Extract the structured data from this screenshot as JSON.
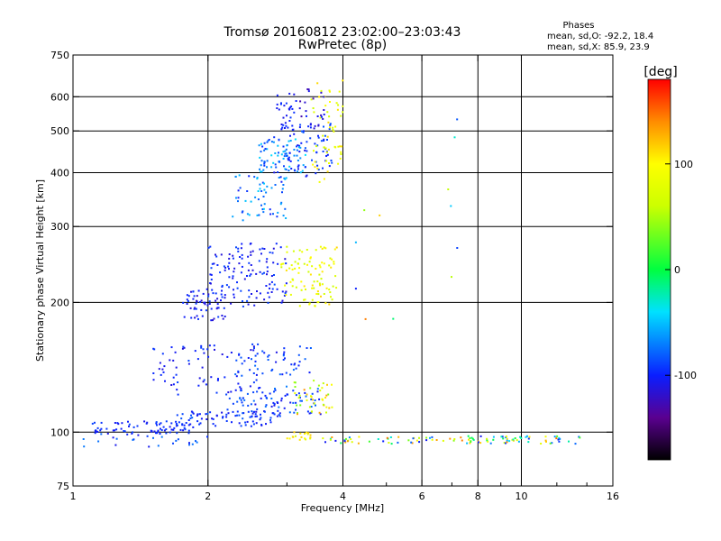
{
  "chart_data": {
    "type": "scatter",
    "title": "Tromsø 20160812 23:02:00–23:03:43",
    "subtitle": "RwPretec (8p)",
    "xlabel": "Frequency [MHz]",
    "ylabel": "Stationary phase Virtual Height [km]",
    "xscale": "log",
    "yscale": "log",
    "xlim": [
      1,
      16
    ],
    "ylim": [
      75,
      750
    ],
    "xticks": [
      {
        "value": 1,
        "label": "1"
      },
      {
        "value": 2,
        "label": "2"
      },
      {
        "value": 4,
        "label": "4"
      },
      {
        "value": 6,
        "label": "6"
      },
      {
        "value": 8,
        "label": "8"
      },
      {
        "value": 10,
        "label": "10"
      },
      {
        "value": 16,
        "label": "16"
      }
    ],
    "xminorticks": [
      3,
      5,
      7,
      9,
      12,
      14
    ],
    "xgrid": [
      2,
      4,
      6,
      8,
      10
    ],
    "yticks": [
      {
        "value": 75,
        "label": "75"
      },
      {
        "value": 100,
        "label": "100"
      },
      {
        "value": 200,
        "label": "200"
      },
      {
        "value": 300,
        "label": "300"
      },
      {
        "value": 400,
        "label": "400"
      },
      {
        "value": 500,
        "label": "500"
      },
      {
        "value": 600,
        "label": "600"
      },
      {
        "value": 750,
        "label": "750"
      }
    ],
    "ygrid": [
      100,
      200,
      300,
      400,
      500,
      600
    ],
    "grid": true,
    "phase_stats": {
      "heading": "Phases",
      "o_line": "mean, sd,O: -92.2, 18.4",
      "x_line": "mean, sd,X:  85.9, 23.9"
    },
    "colorbar": {
      "label": "[deg]",
      "range": [
        -180,
        180
      ],
      "ticks": [
        {
          "value": 100,
          "label": "100"
        },
        {
          "value": 0,
          "label": "0"
        },
        {
          "value": -100,
          "label": "-100"
        }
      ],
      "stops": [
        {
          "value": -180,
          "color": "#000000"
        },
        {
          "value": -140,
          "color": "#5a0090"
        },
        {
          "value": -100,
          "color": "#0a1eff"
        },
        {
          "value": -40,
          "color": "#00e1ff"
        },
        {
          "value": 0,
          "color": "#00ff40"
        },
        {
          "value": 60,
          "color": "#ccff00"
        },
        {
          "value": 100,
          "color": "#ffff00"
        },
        {
          "value": 140,
          "color": "#ff8c00"
        },
        {
          "value": 180,
          "color": "#ff0000"
        }
      ]
    },
    "series": [
      {
        "clusters": [
          {
            "f": [
              1.1,
              1.9
            ],
            "h": [
              99,
              106
            ],
            "phase": [
              -108,
              -88
            ],
            "n": 75
          },
          {
            "f": [
              1.7,
              2.9
            ],
            "h": [
              103,
              112
            ],
            "phase": [
              -110,
              -80
            ],
            "n": 80
          },
          {
            "f": [
              2.2,
              3.6
            ],
            "h": [
              110,
              128
            ],
            "phase": [
              -112,
              -70
            ],
            "n": 90
          },
          {
            "f": [
              3.1,
              3.8
            ],
            "h": [
              110,
              132
            ],
            "phase": [
              30,
              140
            ],
            "n": 40
          },
          {
            "f": [
              1.5,
              2.6
            ],
            "h": [
              122,
              160
            ],
            "phase": [
              -115,
              -85
            ],
            "n": 70
          },
          {
            "f": [
              2.3,
              3.4
            ],
            "h": [
              135,
              158
            ],
            "phase": [
              -110,
              -75
            ],
            "n": 50
          },
          {
            "f": [
              1.05,
              2.0
            ],
            "h": [
              92,
              99
            ],
            "phase": [
              -110,
              -70
            ],
            "n": 25
          },
          {
            "f": [
              3.0,
              3.4
            ],
            "h": [
              96,
              100
            ],
            "phase": [
              70,
              120
            ],
            "n": 18
          },
          {
            "f": [
              3.6,
              13.5
            ],
            "h": [
              94,
              98
            ],
            "phase": [
              -110,
              150
            ],
            "n": 110
          },
          {
            "f": [
              1.75,
              2.2
            ],
            "h": [
              180,
              215
            ],
            "phase": [
              -120,
              -90
            ],
            "n": 55
          },
          {
            "f": [
              2.0,
              3.0
            ],
            "h": [
              195,
              275
            ],
            "phase": [
              -115,
              -85
            ],
            "n": 130
          },
          {
            "f": [
              2.9,
              3.9
            ],
            "h": [
              195,
              270
            ],
            "phase": [
              60,
              115
            ],
            "n": 95
          },
          {
            "f": [
              2.25,
              3.0
            ],
            "h": [
              310,
              400
            ],
            "phase": [
              -105,
              -40
            ],
            "n": 60
          },
          {
            "f": [
              2.6,
              3.3
            ],
            "h": [
              400,
              480
            ],
            "phase": [
              -100,
              -40
            ],
            "n": 75
          },
          {
            "f": [
              2.8,
              3.8
            ],
            "h": [
              390,
              520
            ],
            "phase": [
              -110,
              -80
            ],
            "n": 70
          },
          {
            "f": [
              2.85,
              3.15
            ],
            "h": [
              500,
              620
            ],
            "phase": [
              -110,
              -90
            ],
            "n": 30
          },
          {
            "f": [
              3.4,
              4.0
            ],
            "h": [
              380,
              660
            ],
            "phase": [
              60,
              115
            ],
            "n": 55
          },
          {
            "f": [
              3.2,
              3.65
            ],
            "h": [
              500,
              625
            ],
            "phase": [
              -130,
              -95
            ],
            "n": 25
          },
          {
            "f": [
              6.8,
              7.2
            ],
            "h": [
              180,
              560
            ],
            "phase": [
              -110,
              100
            ],
            "n": 6
          },
          {
            "f": [
              4.1,
              5.3
            ],
            "h": [
              155,
              370
            ],
            "phase": [
              -110,
              180
            ],
            "n": 6
          }
        ]
      }
    ]
  }
}
